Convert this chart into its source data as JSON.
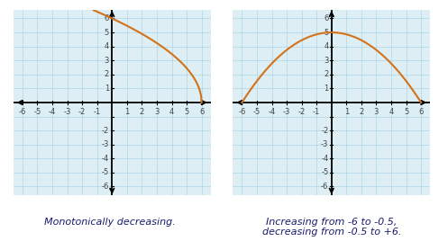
{
  "xlim": [
    -6.6,
    6.6
  ],
  "ylim": [
    -6.6,
    6.6
  ],
  "xtick_vals": [
    -6,
    -5,
    -4,
    -3,
    -2,
    -1,
    1,
    2,
    3,
    4,
    5,
    6
  ],
  "ytick_vals": [
    -6,
    -5,
    -4,
    -3,
    -2,
    1,
    2,
    3,
    4,
    5,
    6
  ],
  "grid_color": "#aed6e8",
  "axis_color": "#000000",
  "curve_color": "#d4721a",
  "curve_linewidth": 1.5,
  "bg_color": "#ddeef5",
  "label1": "Monotonically decreasing.",
  "label2": "Increasing from -6 to -0.5,\ndecreasing from -0.5 to +6.",
  "label_fontsize": 8,
  "label_color": "#1a1a6e",
  "tick_fontsize": 6,
  "tick_color": "#444444"
}
